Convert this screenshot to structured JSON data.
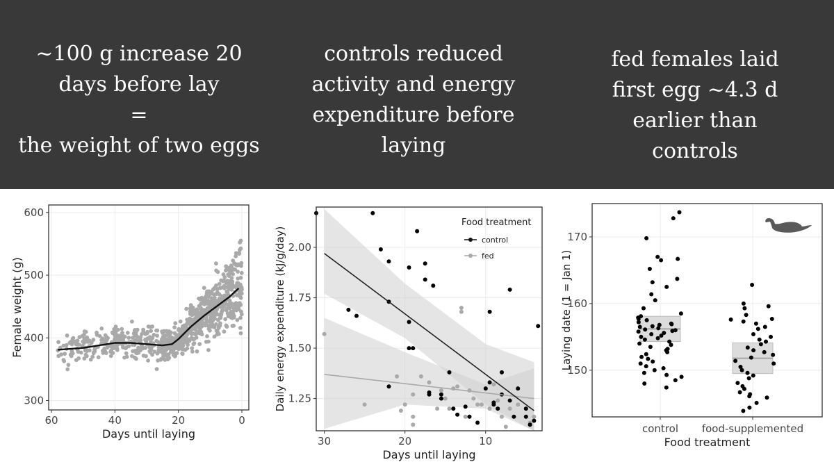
{
  "headlines": {
    "h1": "~100 g increase 20\ndays before lay\n=\nthe weight of two eggs",
    "h2": "controls reduced\nactivity and energy\nexpenditure before\nlaying",
    "h3": "fed females laid\nfirst egg ~4.3 d\nearlier than\ncontrols"
  },
  "colors": {
    "banner": "#3a3939",
    "point_grey": "#a9a9a9",
    "point_black": "#000000",
    "ribbon": "#d9d9d9",
    "box": "#dcdcdc"
  },
  "chart_data": [
    {
      "type": "scatter",
      "xlabel": "Days until laying",
      "ylabel": "Female weight (g)",
      "xlim": [
        60,
        0
      ],
      "ylim": [
        285,
        612
      ],
      "xticks": [
        "60",
        "40",
        "20",
        "0"
      ],
      "yticks": [
        "300",
        "400",
        "500",
        "600"
      ],
      "grid": true,
      "point_count_approx": 900,
      "smooth": {
        "x": [
          58,
          50,
          45,
          40,
          35,
          30,
          25,
          22,
          20,
          16,
          12,
          8,
          4,
          1
        ],
        "y": [
          381,
          384,
          388,
          392,
          392,
          390,
          388,
          390,
          398,
          418,
          435,
          450,
          465,
          479
        ]
      }
    },
    {
      "type": "scatter",
      "xlabel": "Days until laying",
      "ylabel": "Daily energy expenditure (kJ/g/day)",
      "xlim": [
        31,
        3
      ],
      "ylim": [
        1.09,
        2.2
      ],
      "xticks": [
        "30",
        "20",
        "10"
      ],
      "yticks": [
        "1.25",
        "1.50",
        "1.75",
        "2.00"
      ],
      "grid": true,
      "legend": {
        "title": "Food treatment",
        "entries": [
          "control",
          "fed"
        ],
        "position": "top-right"
      },
      "series": [
        {
          "name": "control",
          "points": [
            [
              31,
              2.17
            ],
            [
              24,
              2.17
            ],
            [
              23,
              1.99
            ],
            [
              22,
              1.93
            ],
            [
              22,
              1.73
            ],
            [
              22,
              1.31
            ],
            [
              19.5,
              1.9
            ],
            [
              19.5,
              1.63
            ],
            [
              19.5,
              1.5
            ],
            [
              19,
              1.5
            ],
            [
              18.5,
              2.08
            ],
            [
              17.5,
              1.92
            ],
            [
              17.5,
              1.84
            ],
            [
              16.5,
              1.81
            ],
            [
              17,
              1.28
            ],
            [
              17,
              1.27
            ],
            [
              15.5,
              1.27
            ],
            [
              15.5,
              1.25
            ],
            [
              14.5,
              1.38
            ],
            [
              14,
              1.2
            ],
            [
              13.5,
              1.17
            ],
            [
              12.5,
              1.21
            ],
            [
              12,
              1.16
            ],
            [
              11,
              1.13
            ],
            [
              10,
              1.3
            ],
            [
              9.5,
              1.68
            ],
            [
              9.5,
              1.33
            ],
            [
              9,
              1.22
            ],
            [
              8.5,
              1.2
            ],
            [
              8,
              1.38
            ],
            [
              8,
              1.27
            ],
            [
              7,
              1.79
            ],
            [
              7,
              1.24
            ],
            [
              6.5,
              1.16
            ],
            [
              6,
              1.3
            ],
            [
              5,
              1.2
            ],
            [
              5,
              1.16
            ],
            [
              4.5,
              1.12
            ],
            [
              4,
              1.14
            ],
            [
              3.5,
              1.61
            ],
            [
              27,
              1.69
            ],
            [
              26,
              1.66
            ],
            [
              9,
              1.23
            ]
          ],
          "fit": {
            "x": [
              30,
              4
            ],
            "y": [
              1.97,
              1.19
            ]
          }
        },
        {
          "name": "fed",
          "points": [
            [
              30,
              1.57
            ],
            [
              25,
              1.22
            ],
            [
              21,
              1.36
            ],
            [
              20.5,
              1.19
            ],
            [
              20,
              1.22
            ],
            [
              19,
              1.27
            ],
            [
              19,
              1.16
            ],
            [
              19,
              1.12
            ],
            [
              18,
              1.36
            ],
            [
              17,
              1.33
            ],
            [
              16,
              1.2
            ],
            [
              15.5,
              1.29
            ],
            [
              15,
              1.25
            ],
            [
              14.5,
              1.2
            ],
            [
              14,
              1.3
            ],
            [
              13.5,
              1.31
            ],
            [
              13,
              1.7
            ],
            [
              13,
              1.68
            ],
            [
              12.5,
              1.16
            ],
            [
              11.5,
              1.25
            ],
            [
              11,
              1.22
            ],
            [
              10.5,
              1.22
            ],
            [
              10,
              1.3
            ],
            [
              9.5,
              1.2
            ],
            [
              9,
              1.32
            ],
            [
              8.5,
              1.24
            ],
            [
              8,
              1.16
            ],
            [
              7.5,
              1.11
            ],
            [
              7,
              1.2
            ],
            [
              6,
              1.22
            ],
            [
              5,
              1.2
            ],
            [
              4.5,
              1.13
            ],
            [
              4,
              1.16
            ],
            [
              12,
              1.29
            ]
          ],
          "fit": {
            "x": [
              30,
              4
            ],
            "y": [
              1.37,
              1.25
            ]
          }
        }
      ]
    },
    {
      "type": "box",
      "xlabel": "Food treatment",
      "ylabel": "Laying date (1 = Jan 1)",
      "ylim": [
        143,
        175
      ],
      "yticks": [
        "150",
        "160",
        "170"
      ],
      "categories": [
        "control",
        "food-supplemented"
      ],
      "grid": true,
      "icon": "duck-icon",
      "boxes": [
        {
          "q1": 154.3,
          "median": 156.2,
          "q3": 158.1
        },
        {
          "q1": 149.5,
          "median": 151.8,
          "q3": 154.1
        }
      ],
      "series": [
        {
          "name": "control",
          "values": [
            173.7,
            172.8,
            169.8,
            167.0,
            166.7,
            166.5,
            165.2,
            163.7,
            163.2,
            162.5,
            161.4,
            160.5,
            159.3,
            158.5,
            158.1,
            157.9,
            157.5,
            157.2,
            157.0,
            156.8,
            156.6,
            156.5,
            156.3,
            156.1,
            156.0,
            155.8,
            155.6,
            155.4,
            155.2,
            155.0,
            154.8,
            154.6,
            154.3,
            154.0,
            153.8,
            153.5,
            153.2,
            153.0,
            152.7,
            152.4,
            152.0,
            151.7,
            151.3,
            151.0,
            150.6,
            150.3,
            150.0,
            149.6,
            149.3,
            149.0,
            148.5,
            148.0,
            147.4,
            155.9,
            156.9,
            157.7
          ]
        },
        {
          "name": "food-supplemented",
          "values": [
            162.8,
            160.0,
            159.6,
            159.3,
            158.3,
            157.7,
            157.6,
            157.3,
            157.0,
            156.5,
            156.2,
            155.4,
            155.0,
            154.6,
            154.3,
            153.9,
            153.4,
            153.0,
            152.7,
            152.3,
            151.9,
            151.4,
            151.0,
            150.5,
            150.0,
            149.6,
            149.2,
            148.8,
            148.1,
            147.6,
            147.2,
            146.7,
            146.4,
            146.1,
            145.9,
            145.1,
            144.4,
            143.9
          ]
        }
      ]
    }
  ]
}
